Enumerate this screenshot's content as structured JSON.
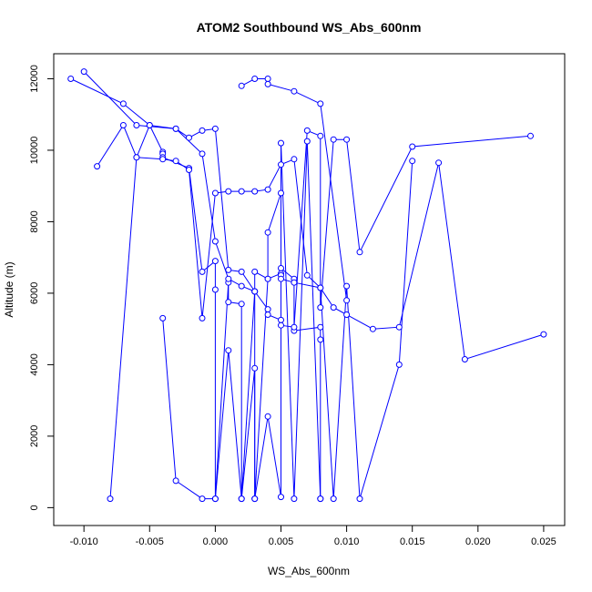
{
  "chart_data": {
    "type": "line",
    "title": "ATOM2 Southbound WS_Abs_600nm",
    "xlabel": "WS_Abs_600nm",
    "ylabel": "Altitude (m)",
    "xlim": [
      -0.0123,
      0.0266
    ],
    "ylim": [
      -500,
      12700
    ],
    "x_ticks": [
      -0.01,
      -0.005,
      0.0,
      0.005,
      0.01,
      0.015,
      0.02,
      0.025
    ],
    "x_tick_labels": [
      "-0.010",
      "-0.005",
      "0.000",
      "0.005",
      "0.010",
      "0.015",
      "0.020",
      "0.025"
    ],
    "y_ticks": [
      0,
      2000,
      4000,
      6000,
      8000,
      10000,
      12000
    ],
    "y_tick_labels": [
      "0",
      "2000",
      "4000",
      "6000",
      "8000",
      "10000",
      "12000"
    ],
    "grid": false,
    "legend": "none",
    "series_color": "#0000ff",
    "marker": "open-circle",
    "series": [
      {
        "x": [
          -0.011,
          -0.007,
          -0.005,
          -0.004,
          -0.004,
          -0.004,
          -0.002,
          -0.001,
          0.0,
          0.0,
          0.0,
          0.001,
          0.001,
          0.002,
          0.002,
          0.003,
          0.003,
          0.004,
          0.004,
          0.005,
          0.005,
          0.006,
          0.006,
          0.008,
          0.008,
          0.008
        ],
        "y": [
          12000,
          11300,
          10700,
          9950,
          9900,
          9800,
          9500,
          6600,
          6900,
          6100,
          250,
          6300,
          5750,
          5700,
          250,
          6050,
          6600,
          6400,
          7700,
          8800,
          6700,
          6400,
          4950,
          5050,
          4700,
          250
        ]
      },
      {
        "x": [
          -0.01,
          -0.006,
          -0.003,
          -0.001,
          0.0,
          0.001,
          0.002,
          0.003,
          0.003,
          0.004,
          0.005,
          0.005,
          0.005,
          0.006,
          0.008,
          0.009,
          0.01,
          0.012,
          0.014,
          0.017,
          0.019,
          0.025
        ],
        "y": [
          12200,
          10700,
          10600,
          9900,
          7450,
          6400,
          6200,
          6050,
          250,
          6400,
          6550,
          6500,
          6400,
          6300,
          6150,
          5600,
          5400,
          5000,
          5050,
          9650,
          4150,
          4850
        ]
      },
      {
        "x": [
          -0.009,
          -0.007,
          -0.006,
          -0.005,
          -0.003,
          -0.002,
          -0.001,
          0.0,
          0.001,
          0.002,
          0.003,
          0.004,
          0.004,
          0.005,
          0.005,
          0.006,
          0.007,
          0.008,
          0.008,
          0.009,
          0.01,
          0.011,
          0.015,
          0.024
        ],
        "y": [
          9550,
          10700,
          9800,
          10700,
          10600,
          10350,
          10550,
          10600,
          6650,
          6600,
          6050,
          5550,
          5400,
          5250,
          5100,
          5050,
          10550,
          10400,
          5600,
          10300,
          10300,
          7150,
          10100,
          10400
        ]
      },
      {
        "x": [
          -0.008,
          -0.006,
          -0.004,
          -0.003,
          -0.002,
          -0.001,
          0.0,
          0.001,
          0.002,
          0.003,
          0.004,
          0.005,
          0.006,
          0.007,
          0.008,
          0.009,
          0.01,
          0.011,
          0.014,
          0.015
        ],
        "y": [
          250,
          9800,
          9750,
          9700,
          9450,
          5300,
          8800,
          8850,
          8850,
          8850,
          8900,
          9600,
          9750,
          6500,
          6150,
          250,
          6200,
          250,
          4000,
          9700
        ]
      },
      {
        "x": [
          -0.004,
          -0.003,
          -0.001,
          0.0,
          0.001,
          0.002,
          0.003,
          0.003,
          0.004,
          0.005,
          0.005,
          0.006,
          0.007,
          0.008
        ],
        "y": [
          5300,
          750,
          250,
          250,
          4400,
          250,
          3900,
          250,
          2550,
          300,
          10200,
          250,
          10250,
          250
        ]
      },
      {
        "x": [
          0.002,
          0.003,
          0.004,
          0.004,
          0.006,
          0.008,
          0.01
        ],
        "y": [
          11800,
          12000,
          12000,
          11850,
          11650,
          11300,
          5800
        ]
      }
    ]
  }
}
